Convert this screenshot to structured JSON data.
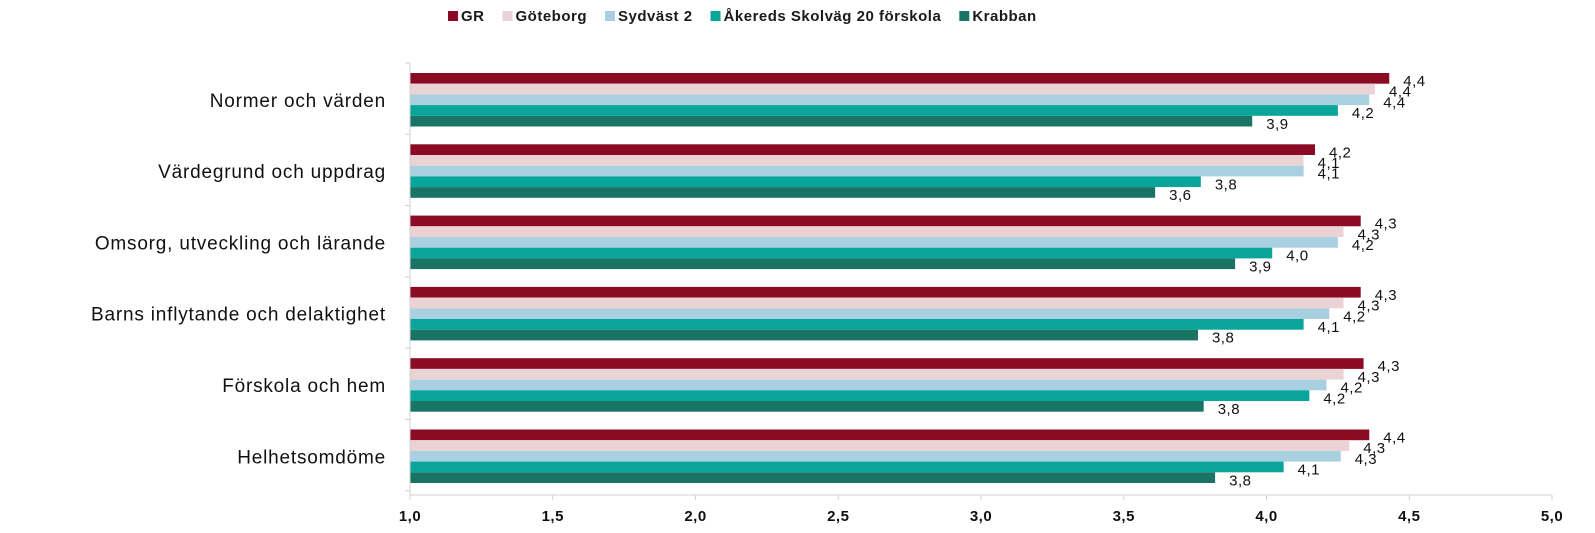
{
  "chart_data": {
    "type": "bar",
    "orientation": "horizontal",
    "categories": [
      "Normer och värden",
      "Värdegrund och uppdrag",
      "Omsorg, utveckling och lärande",
      "Barns inflytande och delaktighet",
      "Förskola och hem",
      "Helhetsomdöme"
    ],
    "series": [
      {
        "name": "GR",
        "color": "#8b0a24",
        "values": [
          4.43,
          4.17,
          4.33,
          4.33,
          4.34,
          4.36
        ],
        "labels": [
          "4,4",
          "4,2",
          "4,3",
          "4,3",
          "4,3",
          "4,4"
        ]
      },
      {
        "name": "Göteborg",
        "color": "#ebd3d5",
        "values": [
          4.38,
          4.13,
          4.27,
          4.27,
          4.27,
          4.29
        ],
        "labels": [
          "4,4",
          "4,1",
          "4,3",
          "4,3",
          "4,3",
          "4,3"
        ]
      },
      {
        "name": "Sydväst 2",
        "color": "#a9d0e0",
        "values": [
          4.36,
          4.13,
          4.25,
          4.22,
          4.21,
          4.26
        ],
        "labels": [
          "4,4",
          "4,1",
          "4,2",
          "4,2",
          "4,2",
          "4,3"
        ]
      },
      {
        "name": "Åkereds Skolväg 20 förskola",
        "color": "#0aa59a",
        "values": [
          4.25,
          3.77,
          4.02,
          4.13,
          4.15,
          4.06
        ],
        "labels": [
          "4,2",
          "3,8",
          "4,0",
          "4,1",
          "4,2",
          "4,1"
        ]
      },
      {
        "name": "Krabban",
        "color": "#1a7466",
        "values": [
          3.95,
          3.61,
          3.89,
          3.76,
          3.78,
          3.82
        ],
        "labels": [
          "3,9",
          "3,6",
          "3,9",
          "3,8",
          "3,8",
          "3,8"
        ]
      }
    ],
    "xlim": [
      1.0,
      5.0
    ],
    "ticks": [
      "1,0",
      "1,5",
      "2,0",
      "2,5",
      "3,0",
      "3,5",
      "4,0",
      "4,5",
      "5,0"
    ],
    "tick_values": [
      1.0,
      1.5,
      2.0,
      2.5,
      3.0,
      3.5,
      4.0,
      4.5,
      5.0
    ],
    "legend": "top-center",
    "grid": false
  }
}
